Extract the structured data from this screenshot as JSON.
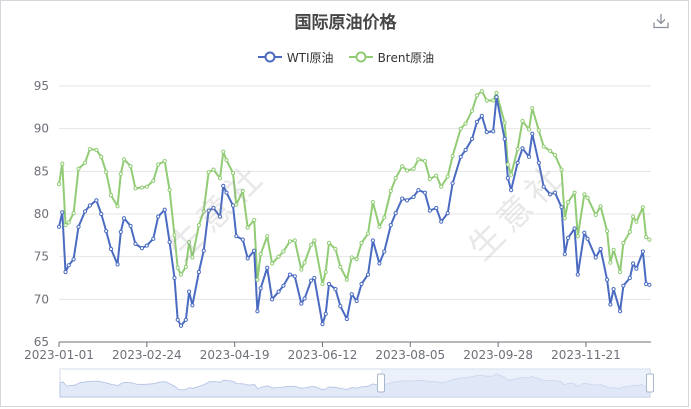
{
  "title": "国际原油价格",
  "toolbar": {
    "download_icon": "download-icon"
  },
  "watermark": "生意社",
  "colors": {
    "wti": "#4a6bc1",
    "brent": "#91cc75",
    "grid": "#e6e6e6",
    "axis": "#6e7079",
    "zoom_fill": "#dde6f7",
    "zoom_handle": "#a7b7cc"
  },
  "chart_data": {
    "type": "line",
    "title": "国际原油价格",
    "ylim": [
      65,
      95
    ],
    "yticks": [
      65,
      70,
      75,
      80,
      85,
      90,
      95
    ],
    "xlim": [
      "2023-01-01",
      "2023-12-31"
    ],
    "xticks": [
      "2023-01-01",
      "2023-02-24",
      "2023-04-19",
      "2023-06-12",
      "2023-08-05",
      "2023-09-28",
      "2023-11-21"
    ],
    "grid": true,
    "legend_position": "top-center",
    "series": [
      {
        "name": "WTI原油",
        "color": "#4a6bc1",
        "points": [
          [
            "2023-01-01",
            78.5
          ],
          [
            "2023-01-03",
            80.2
          ],
          [
            "2023-01-05",
            73.2
          ],
          [
            "2023-01-07",
            74.0
          ],
          [
            "2023-01-10",
            74.7
          ],
          [
            "2023-01-13",
            78.5
          ],
          [
            "2023-01-17",
            80.3
          ],
          [
            "2023-01-20",
            81.0
          ],
          [
            "2023-01-24",
            81.6
          ],
          [
            "2023-01-27",
            80.0
          ],
          [
            "2023-01-30",
            78.0
          ],
          [
            "2023-02-02",
            75.9
          ],
          [
            "2023-02-06",
            74.1
          ],
          [
            "2023-02-08",
            77.9
          ],
          [
            "2023-02-10",
            79.5
          ],
          [
            "2023-02-14",
            78.6
          ],
          [
            "2023-02-17",
            76.5
          ],
          [
            "2023-02-21",
            76.0
          ],
          [
            "2023-02-24",
            76.3
          ],
          [
            "2023-02-28",
            77.1
          ],
          [
            "2023-03-03",
            79.7
          ],
          [
            "2023-03-07",
            80.5
          ],
          [
            "2023-03-10",
            76.7
          ],
          [
            "2023-03-13",
            72.5
          ],
          [
            "2023-03-15",
            67.6
          ],
          [
            "2023-03-17",
            66.9
          ],
          [
            "2023-03-20",
            67.6
          ],
          [
            "2023-03-22",
            70.9
          ],
          [
            "2023-03-24",
            69.3
          ],
          [
            "2023-03-28",
            73.2
          ],
          [
            "2023-03-31",
            75.7
          ],
          [
            "2023-04-03",
            80.4
          ],
          [
            "2023-04-06",
            80.7
          ],
          [
            "2023-04-10",
            79.7
          ],
          [
            "2023-04-12",
            83.3
          ],
          [
            "2023-04-14",
            82.5
          ],
          [
            "2023-04-18",
            81.0
          ],
          [
            "2023-04-20",
            77.4
          ],
          [
            "2023-04-24",
            77.0
          ],
          [
            "2023-04-27",
            74.8
          ],
          [
            "2023-05-01",
            75.7
          ],
          [
            "2023-05-03",
            68.6
          ],
          [
            "2023-05-05",
            71.3
          ],
          [
            "2023-05-09",
            73.7
          ],
          [
            "2023-05-12",
            70.0
          ],
          [
            "2023-05-16",
            70.9
          ],
          [
            "2023-05-19",
            71.6
          ],
          [
            "2023-05-23",
            72.9
          ],
          [
            "2023-05-26",
            72.7
          ],
          [
            "2023-05-30",
            69.5
          ],
          [
            "2023-06-01",
            70.1
          ],
          [
            "2023-06-05",
            72.2
          ],
          [
            "2023-06-07",
            72.5
          ],
          [
            "2023-06-12",
            67.1
          ],
          [
            "2023-06-14",
            68.3
          ],
          [
            "2023-06-16",
            71.8
          ],
          [
            "2023-06-20",
            71.2
          ],
          [
            "2023-06-23",
            69.2
          ],
          [
            "2023-06-27",
            67.7
          ],
          [
            "2023-06-30",
            70.6
          ],
          [
            "2023-07-03",
            69.8
          ],
          [
            "2023-07-06",
            71.8
          ],
          [
            "2023-07-10",
            72.9
          ],
          [
            "2023-07-13",
            76.9
          ],
          [
            "2023-07-17",
            74.2
          ],
          [
            "2023-07-20",
            75.6
          ],
          [
            "2023-07-24",
            78.7
          ],
          [
            "2023-07-27",
            80.1
          ],
          [
            "2023-07-31",
            81.8
          ],
          [
            "2023-08-03",
            81.6
          ],
          [
            "2023-08-07",
            82.0
          ],
          [
            "2023-08-10",
            82.8
          ],
          [
            "2023-08-14",
            82.5
          ],
          [
            "2023-08-17",
            80.4
          ],
          [
            "2023-08-21",
            80.7
          ],
          [
            "2023-08-24",
            79.1
          ],
          [
            "2023-08-28",
            80.1
          ],
          [
            "2023-08-31",
            83.6
          ],
          [
            "2023-09-05",
            86.7
          ],
          [
            "2023-09-08",
            87.5
          ],
          [
            "2023-09-12",
            88.8
          ],
          [
            "2023-09-15",
            90.8
          ],
          [
            "2023-09-18",
            91.5
          ],
          [
            "2023-09-21",
            89.6
          ],
          [
            "2023-09-25",
            89.7
          ],
          [
            "2023-09-27",
            93.7
          ],
          [
            "2023-10-02",
            88.8
          ],
          [
            "2023-10-04",
            84.2
          ],
          [
            "2023-10-06",
            82.8
          ],
          [
            "2023-10-10",
            86.0
          ],
          [
            "2023-10-13",
            87.7
          ],
          [
            "2023-10-17",
            86.7
          ],
          [
            "2023-10-19",
            89.4
          ],
          [
            "2023-10-23",
            86.0
          ],
          [
            "2023-10-26",
            83.2
          ],
          [
            "2023-10-30",
            82.3
          ],
          [
            "2023-11-02",
            82.5
          ],
          [
            "2023-11-06",
            80.8
          ],
          [
            "2023-11-08",
            75.3
          ],
          [
            "2023-11-10",
            77.2
          ],
          [
            "2023-11-14",
            78.3
          ],
          [
            "2023-11-16",
            72.9
          ],
          [
            "2023-11-20",
            77.8
          ],
          [
            "2023-11-22",
            77.1
          ],
          [
            "2023-11-27",
            74.9
          ],
          [
            "2023-11-30",
            75.9
          ],
          [
            "2023-12-04",
            72.3
          ],
          [
            "2023-12-06",
            69.4
          ],
          [
            "2023-12-08",
            71.2
          ],
          [
            "2023-12-12",
            68.6
          ],
          [
            "2023-12-14",
            71.6
          ],
          [
            "2023-12-18",
            72.5
          ],
          [
            "2023-12-20",
            74.2
          ],
          [
            "2023-12-22",
            73.6
          ],
          [
            "2023-12-26",
            75.6
          ],
          [
            "2023-12-28",
            71.8
          ],
          [
            "2023-12-30",
            71.7
          ]
        ]
      },
      {
        "name": "Brent原油",
        "color": "#91cc75",
        "points": [
          [
            "2023-01-01",
            83.5
          ],
          [
            "2023-01-03",
            85.9
          ],
          [
            "2023-01-05",
            78.7
          ],
          [
            "2023-01-07",
            79.0
          ],
          [
            "2023-01-10",
            80.1
          ],
          [
            "2023-01-13",
            85.3
          ],
          [
            "2023-01-17",
            86.0
          ],
          [
            "2023-01-20",
            87.6
          ],
          [
            "2023-01-24",
            87.5
          ],
          [
            "2023-01-27",
            86.7
          ],
          [
            "2023-01-30",
            84.9
          ],
          [
            "2023-02-02",
            82.2
          ],
          [
            "2023-02-06",
            80.9
          ],
          [
            "2023-02-08",
            84.7
          ],
          [
            "2023-02-10",
            86.4
          ],
          [
            "2023-02-14",
            85.6
          ],
          [
            "2023-02-17",
            83.0
          ],
          [
            "2023-02-21",
            83.1
          ],
          [
            "2023-02-24",
            83.2
          ],
          [
            "2023-02-28",
            83.9
          ],
          [
            "2023-03-03",
            85.8
          ],
          [
            "2023-03-07",
            86.2
          ],
          [
            "2023-03-10",
            82.8
          ],
          [
            "2023-03-13",
            77.5
          ],
          [
            "2023-03-15",
            73.7
          ],
          [
            "2023-03-17",
            72.9
          ],
          [
            "2023-03-20",
            73.8
          ],
          [
            "2023-03-22",
            76.7
          ],
          [
            "2023-03-24",
            74.9
          ],
          [
            "2023-03-28",
            78.7
          ],
          [
            "2023-03-31",
            80.3
          ],
          [
            "2023-04-03",
            84.9
          ],
          [
            "2023-04-06",
            85.2
          ],
          [
            "2023-04-10",
            84.2
          ],
          [
            "2023-04-12",
            87.3
          ],
          [
            "2023-04-14",
            86.3
          ],
          [
            "2023-04-18",
            84.8
          ],
          [
            "2023-04-20",
            81.1
          ],
          [
            "2023-04-24",
            82.7
          ],
          [
            "2023-04-27",
            78.4
          ],
          [
            "2023-05-01",
            79.3
          ],
          [
            "2023-05-03",
            72.3
          ],
          [
            "2023-05-05",
            75.3
          ],
          [
            "2023-05-09",
            77.4
          ],
          [
            "2023-05-12",
            74.2
          ],
          [
            "2023-05-16",
            75.0
          ],
          [
            "2023-05-19",
            75.6
          ],
          [
            "2023-05-23",
            76.8
          ],
          [
            "2023-05-26",
            76.9
          ],
          [
            "2023-05-30",
            73.5
          ],
          [
            "2023-06-01",
            74.3
          ],
          [
            "2023-06-05",
            76.4
          ],
          [
            "2023-06-07",
            76.9
          ],
          [
            "2023-06-12",
            71.8
          ],
          [
            "2023-06-14",
            73.2
          ],
          [
            "2023-06-16",
            76.6
          ],
          [
            "2023-06-20",
            75.9
          ],
          [
            "2023-06-23",
            73.8
          ],
          [
            "2023-06-27",
            72.3
          ],
          [
            "2023-06-30",
            74.9
          ],
          [
            "2023-07-03",
            74.7
          ],
          [
            "2023-07-06",
            76.6
          ],
          [
            "2023-07-10",
            77.7
          ],
          [
            "2023-07-13",
            81.4
          ],
          [
            "2023-07-17",
            78.5
          ],
          [
            "2023-07-20",
            79.6
          ],
          [
            "2023-07-24",
            82.7
          ],
          [
            "2023-07-27",
            84.2
          ],
          [
            "2023-07-31",
            85.6
          ],
          [
            "2023-08-03",
            85.1
          ],
          [
            "2023-08-07",
            85.3
          ],
          [
            "2023-08-10",
            86.4
          ],
          [
            "2023-08-14",
            86.2
          ],
          [
            "2023-08-17",
            84.1
          ],
          [
            "2023-08-21",
            84.5
          ],
          [
            "2023-08-24",
            83.2
          ],
          [
            "2023-08-28",
            84.4
          ],
          [
            "2023-08-31",
            86.8
          ],
          [
            "2023-09-05",
            90.0
          ],
          [
            "2023-09-08",
            90.6
          ],
          [
            "2023-09-12",
            92.1
          ],
          [
            "2023-09-15",
            93.9
          ],
          [
            "2023-09-18",
            94.4
          ],
          [
            "2023-09-21",
            93.3
          ],
          [
            "2023-09-25",
            93.3
          ],
          [
            "2023-09-27",
            94.2
          ],
          [
            "2023-10-02",
            90.7
          ],
          [
            "2023-10-04",
            85.8
          ],
          [
            "2023-10-06",
            84.6
          ],
          [
            "2023-10-10",
            87.6
          ],
          [
            "2023-10-13",
            90.9
          ],
          [
            "2023-10-17",
            89.9
          ],
          [
            "2023-10-19",
            92.4
          ],
          [
            "2023-10-23",
            89.8
          ],
          [
            "2023-10-26",
            87.9
          ],
          [
            "2023-10-30",
            87.4
          ],
          [
            "2023-11-02",
            86.9
          ],
          [
            "2023-11-06",
            85.2
          ],
          [
            "2023-11-08",
            79.5
          ],
          [
            "2023-11-10",
            81.4
          ],
          [
            "2023-11-14",
            82.5
          ],
          [
            "2023-11-16",
            77.4
          ],
          [
            "2023-11-20",
            82.3
          ],
          [
            "2023-11-22",
            81.9
          ],
          [
            "2023-11-27",
            79.9
          ],
          [
            "2023-11-30",
            80.9
          ],
          [
            "2023-12-04",
            78.0
          ],
          [
            "2023-12-06",
            74.3
          ],
          [
            "2023-12-08",
            75.8
          ],
          [
            "2023-12-12",
            73.2
          ],
          [
            "2023-12-14",
            76.6
          ],
          [
            "2023-12-18",
            77.9
          ],
          [
            "2023-12-20",
            79.7
          ],
          [
            "2023-12-22",
            79.1
          ],
          [
            "2023-12-26",
            80.8
          ],
          [
            "2023-12-28",
            77.3
          ],
          [
            "2023-12-30",
            77.0
          ]
        ]
      }
    ]
  }
}
